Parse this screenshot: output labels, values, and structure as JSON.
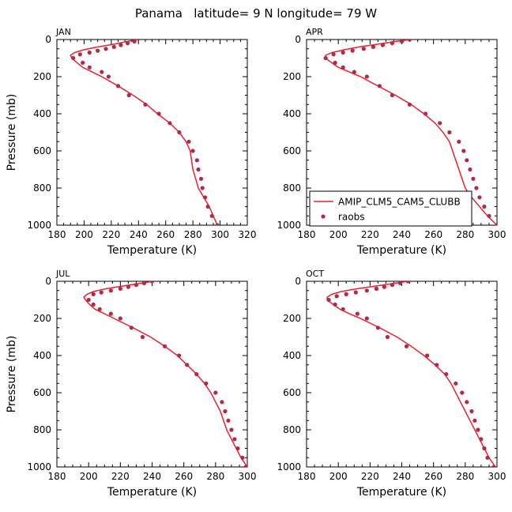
{
  "title": "Panama   latitude= 9 N longitude= 79 W",
  "legend": {
    "model_label": "AMIP_CLM5_CAM5_CLUBB",
    "obs_label": "raobs",
    "placement": "lower-left of APR panel"
  },
  "colors": {
    "model": "#e8232b",
    "obs": "#b02a4c",
    "axis": "#000000"
  },
  "chart_data": [
    {
      "type": "line",
      "panel": "JAN",
      "xlabel": "Temperature (K)",
      "ylabel": "Pressure (mb)",
      "xlim": [
        180,
        320
      ],
      "ylim": [
        1000,
        0
      ],
      "xticks": [
        "180",
        "200",
        "220",
        "240",
        "260",
        "280",
        "300",
        "320"
      ],
      "yticks": [
        "0",
        "200",
        "400",
        "600",
        "800",
        "1000"
      ],
      "series": [
        {
          "name": "AMIP_CLM5_CAM5_CLUBB",
          "kind": "line",
          "points": [
            [
              240,
              0
            ],
            [
              232,
              10
            ],
            [
              222,
              25
            ],
            [
              210,
              40
            ],
            [
              200,
              55
            ],
            [
              193,
              70
            ],
            [
              190,
              85
            ],
            [
              191,
              100
            ],
            [
              194,
              120
            ],
            [
              199,
              150
            ],
            [
              206,
              175
            ],
            [
              213,
              200
            ],
            [
              225,
              250
            ],
            [
              236,
              300
            ],
            [
              246,
              350
            ],
            [
              254,
              400
            ],
            [
              263,
              450
            ],
            [
              270,
              500
            ],
            [
              275,
              550
            ],
            [
              278,
              600
            ],
            [
              279,
              650
            ],
            [
              280,
              700
            ],
            [
              282,
              750
            ],
            [
              284,
              800
            ],
            [
              288,
              850
            ],
            [
              292,
              900
            ],
            [
              295,
              950
            ],
            [
              298,
              1000
            ]
          ]
        },
        {
          "name": "raobs",
          "kind": "scatter",
          "points": [
            [
              237,
              10
            ],
            [
              232,
              20
            ],
            [
              227,
              30
            ],
            [
              222,
              40
            ],
            [
              216,
              50
            ],
            [
              210,
              60
            ],
            [
              204,
              70
            ],
            [
              197,
              80
            ],
            [
              192,
              100
            ],
            [
              199,
              125
            ],
            [
              204,
              150
            ],
            [
              213,
              175
            ],
            [
              218,
              200
            ],
            [
              225,
              250
            ],
            [
              233,
              300
            ],
            [
              245,
              350
            ],
            [
              255,
              400
            ],
            [
              263,
              450
            ],
            [
              270,
              500
            ],
            [
              277,
              550
            ],
            [
              280,
              600
            ],
            [
              283,
              650
            ],
            [
              284,
              700
            ],
            [
              286,
              750
            ],
            [
              287,
              800
            ],
            [
              289,
              850
            ],
            [
              291,
              900
            ],
            [
              294,
              950
            ],
            [
              298,
              1000
            ]
          ]
        }
      ]
    },
    {
      "type": "line",
      "panel": "APR",
      "xlabel": "Temperature (K)",
      "ylabel": "",
      "xlim": [
        180,
        300
      ],
      "ylim": [
        1000,
        0
      ],
      "xticks": [
        "180",
        "200",
        "220",
        "240",
        "260",
        "280",
        "300"
      ],
      "yticks": [
        "0",
        "200",
        "400",
        "600",
        "800",
        "1000"
      ],
      "series": [
        {
          "name": "AMIP_CLM5_CAM5_CLUBB",
          "kind": "line",
          "points": [
            [
              246,
              0
            ],
            [
              236,
              10
            ],
            [
              225,
              25
            ],
            [
              213,
              40
            ],
            [
              204,
              55
            ],
            [
              196,
              70
            ],
            [
              192,
              85
            ],
            [
              192,
              100
            ],
            [
              195,
              120
            ],
            [
              200,
              150
            ],
            [
              207,
              175
            ],
            [
              214,
              200
            ],
            [
              225,
              250
            ],
            [
              236,
              300
            ],
            [
              246,
              350
            ],
            [
              254,
              400
            ],
            [
              261,
              450
            ],
            [
              266,
              500
            ],
            [
              270,
              550
            ],
            [
              272,
              600
            ],
            [
              274,
              650
            ],
            [
              276,
              700
            ],
            [
              278,
              750
            ],
            [
              280,
              800
            ],
            [
              284,
              850
            ],
            [
              289,
              900
            ],
            [
              294,
              950
            ],
            [
              300,
              1000
            ]
          ]
        },
        {
          "name": "raobs",
          "kind": "scatter",
          "points": [
            [
              245,
              0
            ],
            [
              240,
              10
            ],
            [
              234,
              20
            ],
            [
              228,
              30
            ],
            [
              222,
              40
            ],
            [
              216,
              50
            ],
            [
              209,
              60
            ],
            [
              203,
              70
            ],
            [
              197,
              80
            ],
            [
              192,
              100
            ],
            [
              198,
              125
            ],
            [
              203,
              150
            ],
            [
              210,
              175
            ],
            [
              218,
              200
            ],
            [
              226,
              250
            ],
            [
              234,
              300
            ],
            [
              245,
              350
            ],
            [
              255,
              400
            ],
            [
              264,
              450
            ],
            [
              270,
              500
            ],
            [
              276,
              550
            ],
            [
              279,
              600
            ],
            [
              281,
              650
            ],
            [
              283,
              700
            ],
            [
              285,
              750
            ],
            [
              287,
              800
            ],
            [
              289,
              850
            ],
            [
              292,
              900
            ],
            [
              295,
              950
            ],
            [
              300,
              1000
            ]
          ]
        }
      ]
    },
    {
      "type": "line",
      "panel": "JUL",
      "xlabel": "Temperature (K)",
      "ylabel": "Pressure (mb)",
      "xlim": [
        180,
        300
      ],
      "ylim": [
        1000,
        0
      ],
      "xticks": [
        "180",
        "200",
        "220",
        "240",
        "260",
        "280",
        "300"
      ],
      "yticks": [
        "0",
        "200",
        "400",
        "600",
        "800",
        "1000"
      ],
      "series": [
        {
          "name": "AMIP_CLM5_CAM5_CLUBB",
          "kind": "line",
          "points": [
            [
              241,
              0
            ],
            [
              233,
              10
            ],
            [
              222,
              25
            ],
            [
              211,
              40
            ],
            [
              203,
              55
            ],
            [
              199,
              70
            ],
            [
              197,
              85
            ],
            [
              198,
              100
            ],
            [
              200,
              120
            ],
            [
              204,
              150
            ],
            [
              210,
              175
            ],
            [
              216,
              200
            ],
            [
              228,
              250
            ],
            [
              239,
              300
            ],
            [
              248,
              350
            ],
            [
              256,
              400
            ],
            [
              262,
              450
            ],
            [
              268,
              500
            ],
            [
              273,
              550
            ],
            [
              277,
              600
            ],
            [
              280,
              650
            ],
            [
              283,
              700
            ],
            [
              285,
              750
            ],
            [
              287,
              800
            ],
            [
              290,
              850
            ],
            [
              293,
              900
            ],
            [
              296,
              950
            ],
            [
              300,
              1000
            ]
          ]
        },
        {
          "name": "raobs",
          "kind": "scatter",
          "points": [
            [
              240,
              0
            ],
            [
              235,
              10
            ],
            [
              230,
              20
            ],
            [
              225,
              30
            ],
            [
              220,
              40
            ],
            [
              214,
              50
            ],
            [
              208,
              60
            ],
            [
              203,
              70
            ],
            [
              200,
              100
            ],
            [
              203,
              125
            ],
            [
              207,
              150
            ],
            [
              214,
              175
            ],
            [
              220,
              200
            ],
            [
              227,
              250
            ],
            [
              234,
              300
            ],
            [
              248,
              350
            ],
            [
              257,
              400
            ],
            [
              262,
              450
            ],
            [
              268,
              500
            ],
            [
              274,
              550
            ],
            [
              280,
              600
            ],
            [
              284,
              650
            ],
            [
              286,
              700
            ],
            [
              288,
              750
            ],
            [
              290,
              800
            ],
            [
              292,
              850
            ],
            [
              294,
              900
            ],
            [
              297,
              950
            ],
            [
              299,
              1000
            ]
          ]
        }
      ]
    },
    {
      "type": "line",
      "panel": "OCT",
      "xlabel": "Temperature (K)",
      "ylabel": "",
      "xlim": [
        180,
        300
      ],
      "ylim": [
        1000,
        0
      ],
      "xticks": [
        "180",
        "200",
        "220",
        "240",
        "260",
        "280",
        "300"
      ],
      "yticks": [
        "0",
        "200",
        "400",
        "600",
        "800",
        "1000"
      ],
      "series": [
        {
          "name": "AMIP_CLM5_CAM5_CLUBB",
          "kind": "line",
          "points": [
            [
              244,
              0
            ],
            [
              236,
              10
            ],
            [
              224,
              25
            ],
            [
              212,
              40
            ],
            [
              202,
              55
            ],
            [
              196,
              70
            ],
            [
              193,
              85
            ],
            [
              193,
              100
            ],
            [
              196,
              120
            ],
            [
              201,
              150
            ],
            [
              207,
              175
            ],
            [
              214,
              200
            ],
            [
              226,
              250
            ],
            [
              237,
              300
            ],
            [
              246,
              350
            ],
            [
              254,
              400
            ],
            [
              261,
              450
            ],
            [
              267,
              500
            ],
            [
              271,
              550
            ],
            [
              274,
              600
            ],
            [
              277,
              650
            ],
            [
              280,
              700
            ],
            [
              283,
              750
            ],
            [
              286,
              800
            ],
            [
              289,
              850
            ],
            [
              292,
              900
            ],
            [
              295,
              950
            ],
            [
              299,
              1000
            ]
          ]
        },
        {
          "name": "raobs",
          "kind": "scatter",
          "points": [
            [
              244,
              0
            ],
            [
              239,
              10
            ],
            [
              234,
              20
            ],
            [
              229,
              30
            ],
            [
              224,
              40
            ],
            [
              218,
              50
            ],
            [
              211,
              60
            ],
            [
              205,
              70
            ],
            [
              199,
              80
            ],
            [
              194,
              100
            ],
            [
              198,
              125
            ],
            [
              203,
              150
            ],
            [
              212,
              175
            ],
            [
              218,
              200
            ],
            [
              225,
              250
            ],
            [
              231,
              300
            ],
            [
              243,
              350
            ],
            [
              256,
              400
            ],
            [
              262,
              450
            ],
            [
              268,
              500
            ],
            [
              274,
              550
            ],
            [
              278,
              600
            ],
            [
              281,
              650
            ],
            [
              284,
              700
            ],
            [
              286,
              750
            ],
            [
              288,
              800
            ],
            [
              290,
              850
            ],
            [
              292,
              900
            ],
            [
              294,
              950
            ],
            [
              298,
              1000
            ]
          ]
        }
      ]
    }
  ]
}
